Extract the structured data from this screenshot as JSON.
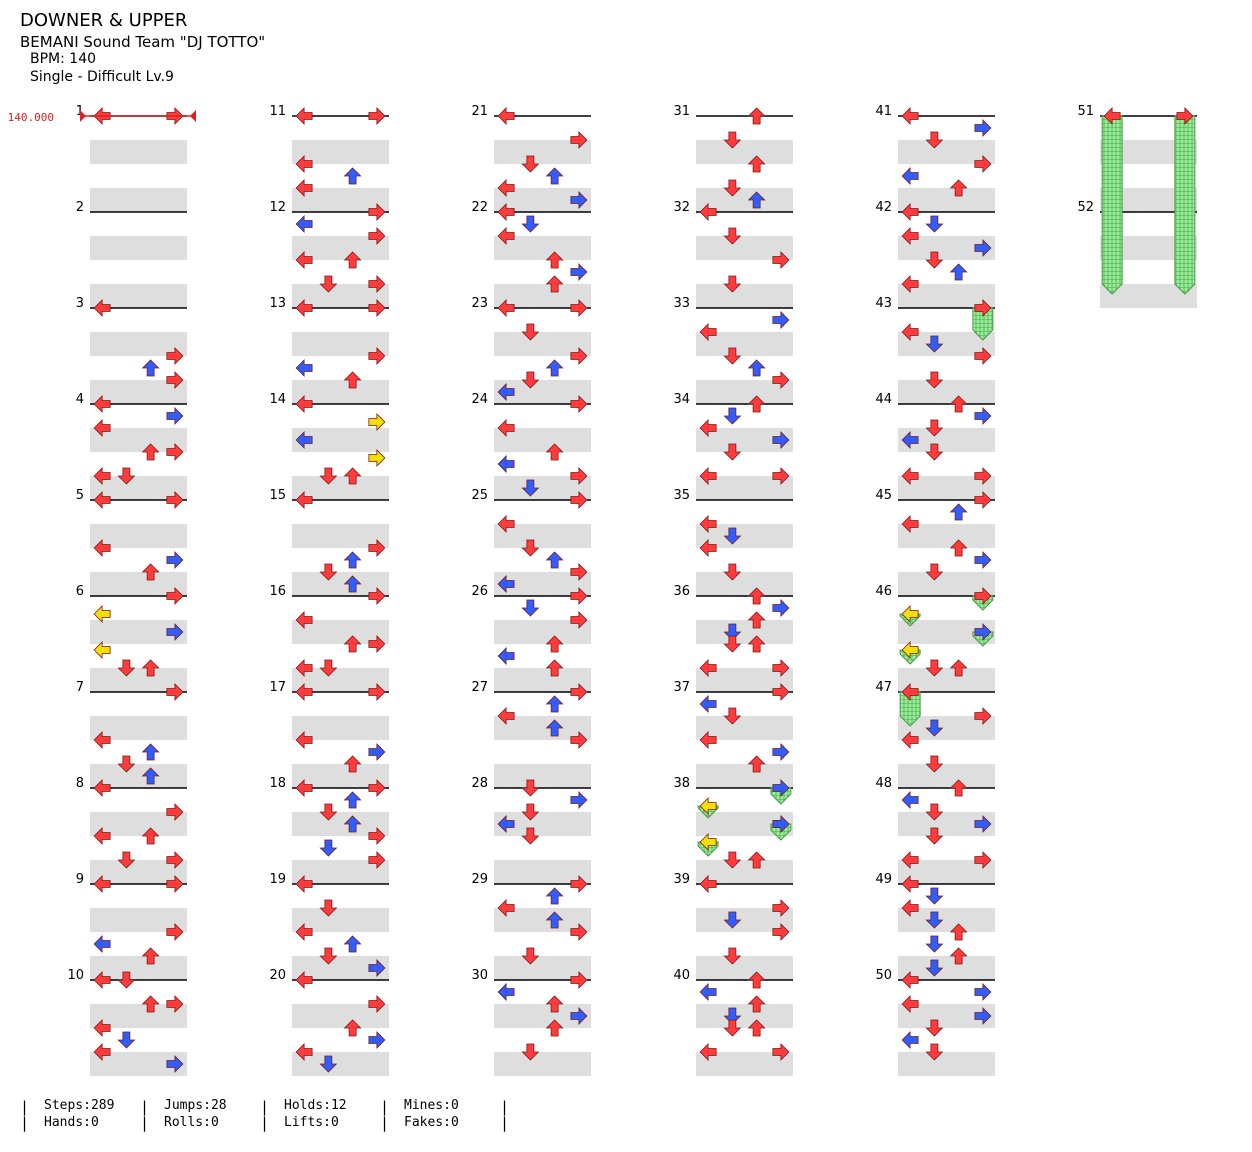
{
  "header": {
    "title": "DOWNER & UPPER",
    "artist": "BEMANI Sound Team \"DJ TOTTO\"",
    "bpm": "BPM: 140",
    "difficulty": "Single - Difficult Lv.9"
  },
  "bpm_marker": "140.000",
  "measures": [
    "1",
    "2",
    "3",
    "4",
    "5",
    "6",
    "7",
    "8",
    "9",
    "10",
    "11",
    "12",
    "13",
    "14",
    "15",
    "16",
    "17",
    "18",
    "19",
    "20",
    "21",
    "22",
    "23",
    "24",
    "25",
    "26",
    "27",
    "28",
    "29",
    "30",
    "31",
    "32",
    "33",
    "34",
    "35",
    "36",
    "37",
    "38",
    "39",
    "40",
    "41",
    "42",
    "43",
    "44",
    "45",
    "46",
    "47",
    "48",
    "49",
    "50",
    "51",
    "52"
  ],
  "stats": [
    {
      "top": "Steps:289",
      "bottom": "Hands:0"
    },
    {
      "top": "Jumps:28",
      "bottom": "Rolls:0"
    },
    {
      "top": "Holds:12",
      "bottom": "Lifts:0"
    },
    {
      "top": "Mines:0",
      "bottom": "Fakes:0"
    }
  ],
  "note_colors": {
    "quarter": "#ff3b3b",
    "eighth": "#2f5dff",
    "sixteenth": "#f4e000",
    "hold": "#7ee07e"
  },
  "arrow_icons": [
    "left-arrow-icon",
    "down-arrow-icon",
    "up-arrow-icon",
    "right-arrow-icon"
  ]
}
